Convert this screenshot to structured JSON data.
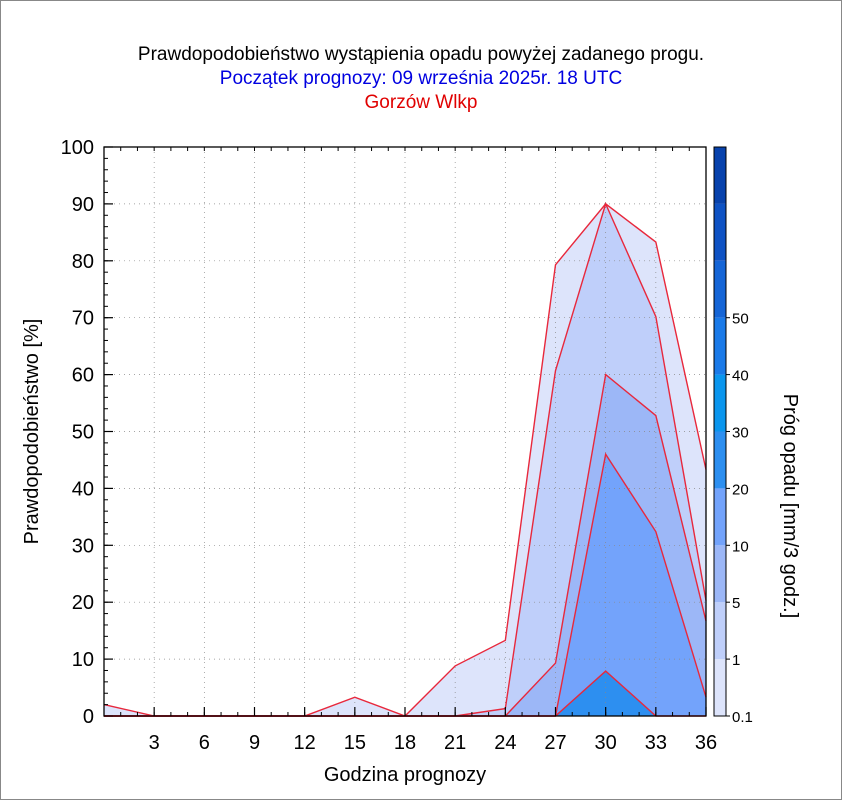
{
  "header": {
    "title": "Prawdopodobieństwo wystąpienia opadu powyżej zadanego progu.",
    "subtitle": "Początek prognozy: 09 września 2025r. 18 UTC",
    "location": "Gorzów Wlkp"
  },
  "colors": {
    "title": "#000000",
    "subtitle": "#0000e0",
    "location": "#e00000",
    "outline": "#e8283c",
    "bands": [
      "#dde4fb",
      "#bfcffa",
      "#9cb7f7",
      "#73a3fb",
      "#2d8ff0",
      "#0a96ee",
      "#1a7ae8",
      "#1565d6",
      "#0e52c4",
      "#0842ac"
    ]
  },
  "chart_data": {
    "type": "area",
    "title": "Prawdopodobieństwo wystąpienia opadu powyżej zadanego progu.",
    "xlabel": "Godzina prognozy",
    "ylabel": "Prawdopodobieństwo [%]",
    "x": [
      0,
      3,
      6,
      9,
      12,
      15,
      18,
      21,
      24,
      27,
      30,
      33,
      36
    ],
    "x_ticks": [
      3,
      6,
      9,
      12,
      15,
      18,
      21,
      24,
      27,
      30,
      33,
      36
    ],
    "xlim": [
      0,
      36
    ],
    "ylim": [
      0,
      100
    ],
    "y_ticks": [
      0,
      10,
      20,
      30,
      40,
      50,
      60,
      70,
      80,
      90,
      100
    ],
    "grid": true,
    "series": [
      {
        "name": "0.1",
        "values": [
          2,
          0,
          0,
          0,
          0,
          3.3,
          0,
          8.8,
          13.3,
          79.3,
          90,
          83.3,
          43.3
        ]
      },
      {
        "name": "1",
        "values": [
          0,
          0,
          0,
          0,
          0,
          0,
          0,
          0,
          1.3,
          60.7,
          90,
          70.2,
          20.3
        ]
      },
      {
        "name": "5",
        "values": [
          0,
          0,
          0,
          0,
          0,
          0,
          0,
          0,
          0,
          9.3,
          60,
          52.8,
          16.7
        ]
      },
      {
        "name": "10",
        "values": [
          0,
          0,
          0,
          0,
          0,
          0,
          0,
          0,
          0,
          0,
          46,
          32.4,
          3.3
        ]
      },
      {
        "name": "20",
        "values": [
          0,
          0,
          0,
          0,
          0,
          0,
          0,
          0,
          0,
          0,
          7.9,
          0,
          0
        ]
      }
    ],
    "colorbar": {
      "label": "Próg opadu [mm/3 godz.]",
      "tick_labels": [
        "0.1",
        "1",
        "5",
        "10",
        "20",
        "30",
        "40",
        "50"
      ]
    }
  }
}
